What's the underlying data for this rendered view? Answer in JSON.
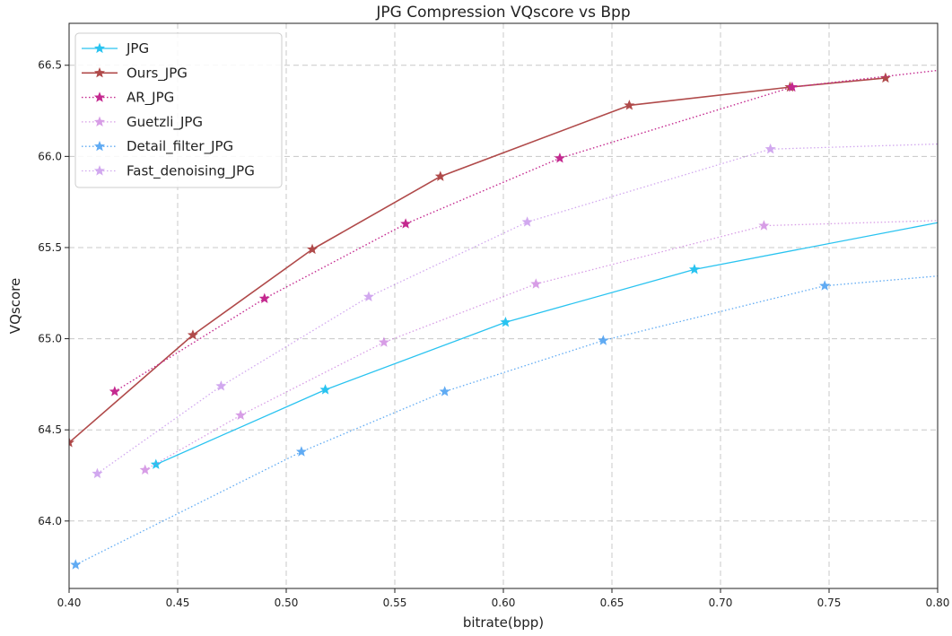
{
  "chart_data": {
    "type": "line",
    "title": "JPG Compression VQscore vs Bpp",
    "xlabel": "bitrate(bpp)",
    "ylabel": "VQscore",
    "xlim": [
      0.4,
      0.8
    ],
    "ylim": [
      63.63,
      66.73
    ],
    "xticks": [
      0.4,
      0.45,
      0.5,
      0.55,
      0.6,
      0.65,
      0.7,
      0.75,
      0.8
    ],
    "yticks": [
      64.0,
      64.5,
      65.0,
      65.5,
      66.0,
      66.5
    ],
    "xtick_labels": [
      "0.40",
      "0.45",
      "0.50",
      "0.55",
      "0.60",
      "0.65",
      "0.70",
      "0.75",
      "0.80"
    ],
    "ytick_labels": [
      "64.0",
      "64.5",
      "65.0",
      "65.5",
      "66.0",
      "66.5"
    ],
    "grid": true,
    "legend_position": "top-left",
    "series": [
      {
        "name": "JPG",
        "color": "#29c3f0",
        "style": "solid",
        "opacity": 1.0,
        "width": 1.3,
        "points": [
          [
            0.44,
            64.31
          ],
          [
            0.518,
            64.72
          ],
          [
            0.601,
            65.09
          ],
          [
            0.688,
            65.38
          ],
          [
            0.806,
            65.65
          ]
        ]
      },
      {
        "name": "Ours_JPG",
        "color": "#b04a4a",
        "style": "solid",
        "opacity": 1.0,
        "width": 1.6,
        "points": [
          [
            0.4,
            64.43
          ],
          [
            0.457,
            65.02
          ],
          [
            0.512,
            65.49
          ],
          [
            0.571,
            65.89
          ],
          [
            0.658,
            66.28
          ],
          [
            0.732,
            66.38
          ],
          [
            0.776,
            66.43
          ]
        ]
      },
      {
        "name": "AR_JPG",
        "color": "#c4298f",
        "style": "dotted",
        "opacity": 1.0,
        "width": 1.4,
        "points": [
          [
            0.421,
            64.71
          ],
          [
            0.49,
            65.22
          ],
          [
            0.555,
            65.63
          ],
          [
            0.626,
            65.99
          ],
          [
            0.733,
            66.38
          ],
          [
            0.806,
            66.48
          ]
        ]
      },
      {
        "name": "Guetzli_JPG",
        "color": "#c36ad9",
        "style": "dotted",
        "opacity": 0.65,
        "width": 1.3,
        "points": [
          [
            0.435,
            64.28
          ],
          [
            0.479,
            64.58
          ],
          [
            0.545,
            64.98
          ],
          [
            0.615,
            65.3
          ],
          [
            0.72,
            65.62
          ],
          [
            0.806,
            65.65
          ]
        ]
      },
      {
        "name": "Detail_filter_JPG",
        "color": "#2b8ff0",
        "style": "dotted",
        "opacity": 0.75,
        "width": 1.3,
        "points": [
          [
            0.403,
            63.76
          ],
          [
            0.507,
            64.38
          ],
          [
            0.573,
            64.71
          ],
          [
            0.646,
            64.99
          ],
          [
            0.748,
            65.29
          ],
          [
            0.806,
            65.35
          ]
        ]
      },
      {
        "name": "Fast_denoising_JPG",
        "color": "#9b3fdc",
        "style": "dotted",
        "opacity": 0.45,
        "width": 1.3,
        "points": [
          [
            0.413,
            64.26
          ],
          [
            0.47,
            64.74
          ],
          [
            0.538,
            65.23
          ],
          [
            0.611,
            65.64
          ],
          [
            0.723,
            66.04
          ],
          [
            0.806,
            66.07
          ]
        ]
      }
    ]
  }
}
